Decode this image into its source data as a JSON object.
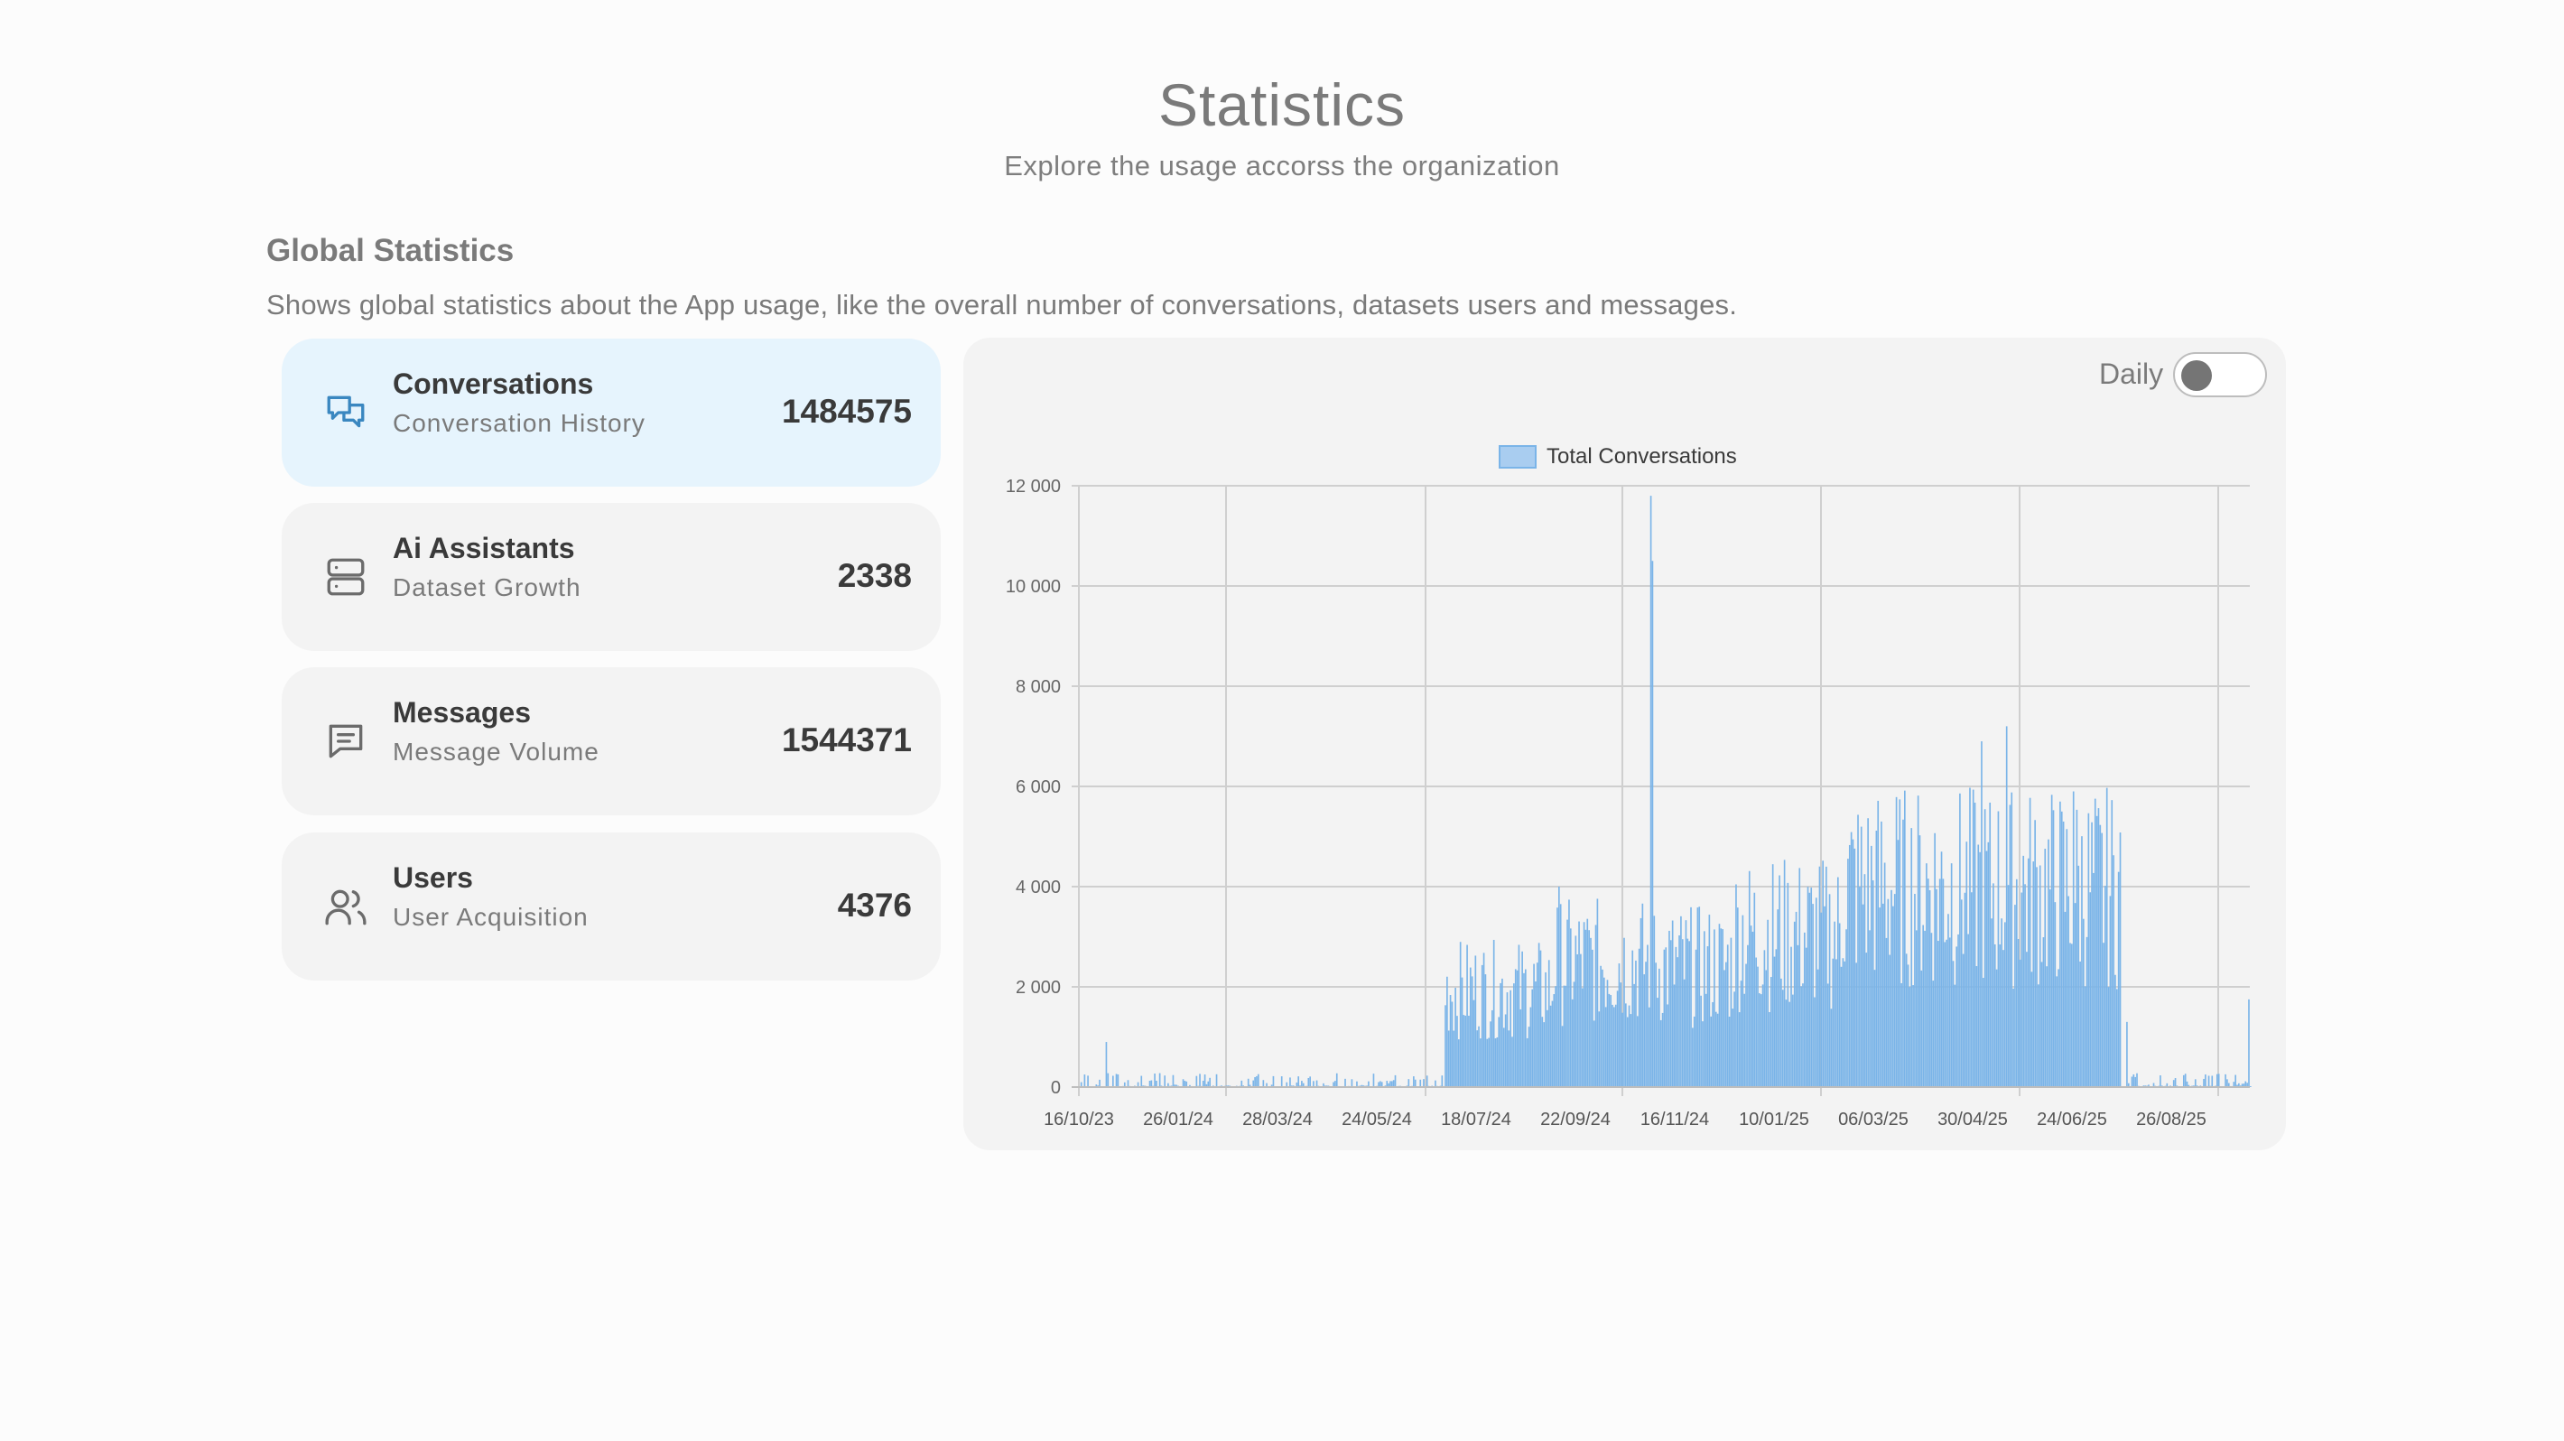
{
  "header": {
    "title": "Statistics",
    "subtitle": "Explore the usage accorss the organization"
  },
  "section": {
    "title": "Global Statistics",
    "description": "Shows global statistics about the App usage, like the overall number of conversations, datasets users and messages."
  },
  "cards": [
    {
      "title": "Conversations",
      "subtitle": "Conversation History",
      "value": "1484575",
      "icon": "chat-bubbles-icon",
      "active": true
    },
    {
      "title": "Ai Assistants",
      "subtitle": "Dataset Growth",
      "value": "2338",
      "icon": "server-icon",
      "active": false
    },
    {
      "title": "Messages",
      "subtitle": "Message Volume",
      "value": "1544371",
      "icon": "message-icon",
      "active": false
    },
    {
      "title": "Users",
      "subtitle": "User Acquisition",
      "value": "4376",
      "icon": "users-icon",
      "active": false
    }
  ],
  "toggle": {
    "label": "Daily",
    "on": false
  },
  "colors": {
    "accent": "#3a87c0",
    "bar": "#7ab4e8",
    "active_card": "#e6f4fd"
  },
  "chart_data": {
    "type": "bar",
    "legend": [
      "Total Conversations"
    ],
    "legend_position": "top",
    "grid": true,
    "ylim": [
      0,
      12000
    ],
    "y_ticks": [
      "0",
      "2 000",
      "4 000",
      "6 000",
      "8 000",
      "10 000",
      "12 000"
    ],
    "x_tick_labels": [
      "16/10/23",
      "26/01/24",
      "28/03/24",
      "24/05/24",
      "18/07/24",
      "22/09/24",
      "16/11/24",
      "10/01/25",
      "06/03/25",
      "30/04/25",
      "24/06/25",
      "26/08/25"
    ],
    "series": [
      {
        "name": "Total Conversations",
        "x_start": "2023-10-16",
        "x_end": "2025-09-16",
        "segments": [
          {
            "from": "2023-10-16",
            "to": "2024-05-21",
            "level": 80
          },
          {
            "from": "2024-05-22",
            "to": "2024-07-25",
            "level": 2100
          },
          {
            "from": "2024-07-26",
            "to": "2024-09-22",
            "level": 2700
          },
          {
            "from": "2024-09-23",
            "to": "2024-11-10",
            "level": 2600
          },
          {
            "from": "2024-11-11",
            "to": "2025-01-14",
            "level": 3300
          },
          {
            "from": "2025-01-15",
            "to": "2025-06-30",
            "level": 4300
          },
          {
            "from": "2025-07-01",
            "to": "2025-09-16",
            "level": 80
          }
        ],
        "spikes": [
          {
            "date": "2023-11-01",
            "value": 900
          },
          {
            "date": "2024-09-22",
            "value": 11800
          },
          {
            "date": "2024-09-23",
            "value": 10500
          },
          {
            "date": "2024-07-29",
            "value": 4000
          },
          {
            "date": "2025-04-23",
            "value": 7200
          },
          {
            "date": "2025-04-08",
            "value": 6900
          },
          {
            "date": "2025-06-02",
            "value": 5900
          },
          {
            "date": "2025-07-04",
            "value": 1300
          },
          {
            "date": "2025-09-15",
            "value": 1750
          }
        ]
      }
    ]
  }
}
